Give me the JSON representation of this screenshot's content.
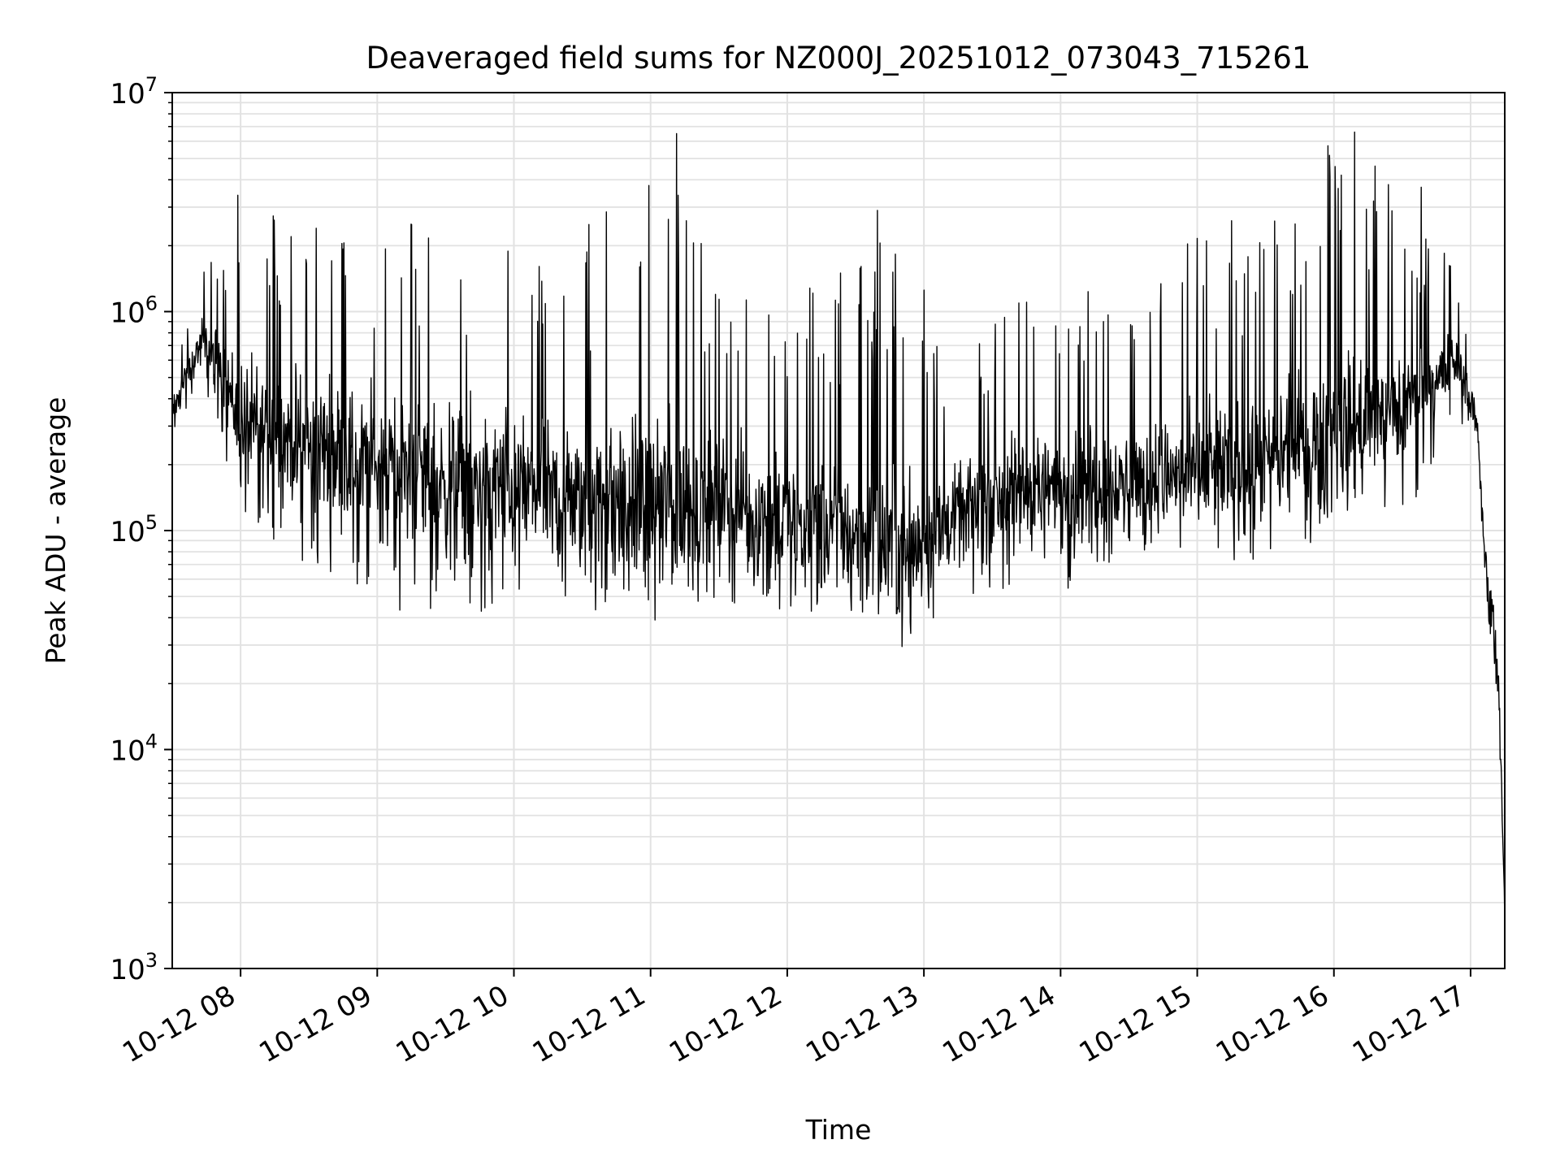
{
  "chart_data": {
    "type": "line",
    "title": "Deaveraged field sums for NZ000J_20251012_073043_715261",
    "xlabel": "Time",
    "ylabel": "Peak ADU - average",
    "yscale": "log",
    "ylim": [
      1000,
      10000000
    ],
    "xlim_hours": [
      7.5,
      17.25
    ],
    "grid": true,
    "x_ticks": [
      {
        "hour": 8,
        "label": "10-12 08"
      },
      {
        "hour": 9,
        "label": "10-12 09"
      },
      {
        "hour": 10,
        "label": "10-12 10"
      },
      {
        "hour": 11,
        "label": "10-12 11"
      },
      {
        "hour": 12,
        "label": "10-12 12"
      },
      {
        "hour": 13,
        "label": "10-12 13"
      },
      {
        "hour": 14,
        "label": "10-12 14"
      },
      {
        "hour": 15,
        "label": "10-12 15"
      },
      {
        "hour": 16,
        "label": "10-12 16"
      },
      {
        "hour": 17,
        "label": "10-12 17"
      }
    ],
    "y_ticks": [
      {
        "value": 1000,
        "base": "10",
        "exp": "3"
      },
      {
        "value": 10000,
        "base": "10",
        "exp": "4"
      },
      {
        "value": 100000,
        "base": "10",
        "exp": "5"
      },
      {
        "value": 1000000,
        "base": "10",
        "exp": "6"
      },
      {
        "value": 10000000,
        "base": "10",
        "exp": "7"
      }
    ],
    "series": [
      {
        "name": "field sums",
        "color": "#000000",
        "note": "Dense noisy series; upper envelope below, plotted with symmetric log noise",
        "envelope": [
          {
            "hour": 7.5,
            "median": 350000,
            "low": 270000,
            "high": 500000
          },
          {
            "hour": 7.7,
            "median": 700000,
            "low": 450000,
            "high": 1800000
          },
          {
            "hour": 7.85,
            "median": 600000,
            "low": 300000,
            "high": 1600000
          },
          {
            "hour": 8.0,
            "median": 300000,
            "low": 90000,
            "high": 3400000
          },
          {
            "hour": 8.5,
            "median": 250000,
            "low": 70000,
            "high": 2600000
          },
          {
            "hour": 9.0,
            "median": 200000,
            "low": 45000,
            "high": 2600000
          },
          {
            "hour": 9.5,
            "median": 170000,
            "low": 40000,
            "high": 2500000
          },
          {
            "hour": 10.0,
            "median": 160000,
            "low": 45000,
            "high": 2200000
          },
          {
            "hour": 10.5,
            "median": 130000,
            "low": 40000,
            "high": 2100000
          },
          {
            "hour": 11.0,
            "median": 130000,
            "low": 45000,
            "high": 6500000
          },
          {
            "hour": 11.5,
            "median": 130000,
            "low": 45000,
            "high": 1700000
          },
          {
            "hour": 12.0,
            "median": 110000,
            "low": 42000,
            "high": 1500000
          },
          {
            "hour": 12.5,
            "median": 100000,
            "low": 38000,
            "high": 1500000
          },
          {
            "hour": 12.8,
            "median": 80000,
            "low": 32000,
            "high": 2900000
          },
          {
            "hour": 13.2,
            "median": 110000,
            "low": 40000,
            "high": 550000
          },
          {
            "hour": 13.5,
            "median": 140000,
            "low": 55000,
            "high": 900000
          },
          {
            "hour": 14.0,
            "median": 160000,
            "low": 50000,
            "high": 1600000
          },
          {
            "hour": 14.5,
            "median": 170000,
            "low": 75000,
            "high": 1000000
          },
          {
            "hour": 15.0,
            "median": 180000,
            "low": 75000,
            "high": 2500000
          },
          {
            "hour": 15.5,
            "median": 200000,
            "low": 70000,
            "high": 2300000
          },
          {
            "hour": 16.0,
            "median": 280000,
            "low": 90000,
            "high": 6500000
          },
          {
            "hour": 16.5,
            "median": 350000,
            "low": 100000,
            "high": 3800000
          },
          {
            "hour": 16.9,
            "median": 600000,
            "low": 350000,
            "high": 1500000
          },
          {
            "hour": 17.05,
            "median": 300000,
            "low": 200000,
            "high": 600000
          },
          {
            "hour": 17.12,
            "median": 55000,
            "low": 40000,
            "high": 80000
          },
          {
            "hour": 17.2,
            "median": 25000,
            "low": 9000,
            "high": 50000
          },
          {
            "hour": 17.25,
            "median": 1700,
            "low": 1500,
            "high": 2000
          }
        ],
        "peaks": [
          {
            "hour": 7.98,
            "value": 3400000
          },
          {
            "hour": 11.19,
            "value": 6500000
          },
          {
            "hour": 11.2,
            "value": 3400000
          },
          {
            "hour": 12.66,
            "value": 2900000
          },
          {
            "hour": 16.15,
            "value": 6600000
          },
          {
            "hour": 16.4,
            "value": 3800000
          },
          {
            "hour": 16.64,
            "value": 3700000
          },
          {
            "hour": 9.25,
            "value": 2500000
          },
          {
            "hour": 10.55,
            "value": 2500000
          },
          {
            "hour": 15.25,
            "value": 2600000
          }
        ]
      }
    ]
  }
}
